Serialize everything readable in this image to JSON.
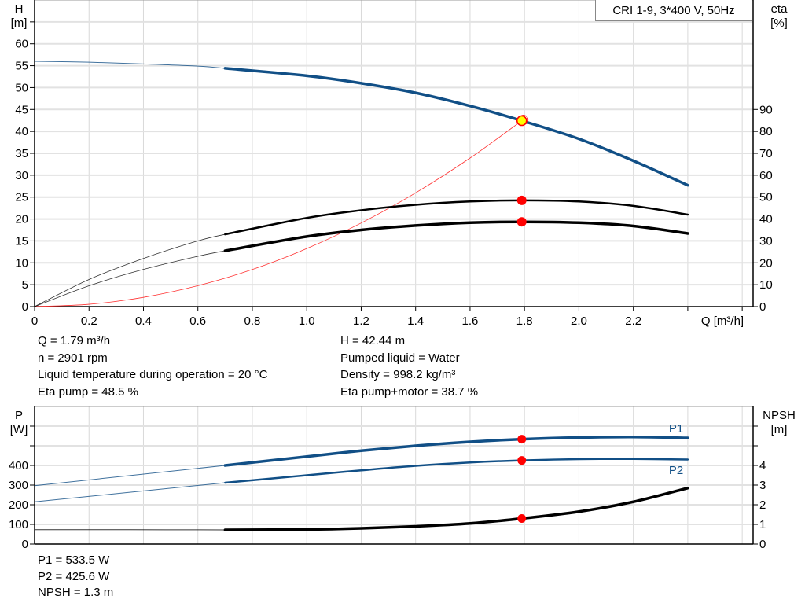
{
  "colors": {
    "head": "#114f86",
    "power": "#114f86",
    "eta": "#000000",
    "npsh": "#000000",
    "system_curve": "#ff3333",
    "operating_point": "#ff0000",
    "duty_marker": "#ffff00",
    "grid": "#d9d9d9"
  },
  "legend_text": "CRI 1-9, 3*400 V, 50Hz",
  "chart_data": [
    {
      "type": "line",
      "title": "",
      "xlabel": "Q [m³/h]",
      "ylabel_left": [
        "H",
        "[m]"
      ],
      "ylabel_right": [
        "eta",
        "[%]"
      ],
      "xlim": [
        0,
        2.64
      ],
      "ylim_left": [
        0,
        70
      ],
      "ylim_right": [
        0,
        140
      ],
      "x_ticks": [
        "0",
        "0.2",
        "0.4",
        "0.6",
        "0.8",
        "1.0",
        "1.2",
        "1.4",
        "1.6",
        "1.8",
        "2.0",
        "2.2"
      ],
      "y_ticks_left": [
        "0",
        "5",
        "10",
        "15",
        "20",
        "25",
        "30",
        "35",
        "40",
        "45",
        "50",
        "55",
        "60"
      ],
      "y_ticks_right": [
        "0",
        "10",
        "20",
        "30",
        "40",
        "50",
        "60",
        "70",
        "80",
        "90"
      ],
      "grid": true,
      "operating_range_start": 0.7,
      "series": [
        {
          "key": "head",
          "axis": "left",
          "x": [
            0,
            0.2,
            0.4,
            0.6,
            0.7,
            1.0,
            1.2,
            1.4,
            1.6,
            1.79,
            2.0,
            2.2,
            2.4
          ],
          "y": [
            56,
            55.8,
            55.4,
            54.9,
            54.4,
            52.7,
            51,
            48.8,
            45.8,
            42.44,
            38.3,
            33.3,
            27.7
          ]
        },
        {
          "key": "eta_pump",
          "axis": "right",
          "x": [
            0,
            0.2,
            0.4,
            0.6,
            0.7,
            1.0,
            1.2,
            1.4,
            1.6,
            1.79,
            2.0,
            2.2,
            2.4
          ],
          "y": [
            0,
            12.4,
            22,
            30,
            33,
            40.5,
            44,
            46.5,
            48,
            48.5,
            48,
            46,
            42
          ]
        },
        {
          "key": "eta_pump_motor",
          "axis": "right",
          "x": [
            0,
            0.2,
            0.4,
            0.6,
            0.7,
            1.0,
            1.2,
            1.4,
            1.6,
            1.79,
            2.0,
            2.2,
            2.4
          ],
          "y": [
            0,
            9.5,
            17,
            23,
            25.5,
            32,
            35,
            37,
            38.3,
            38.7,
            38.3,
            36.8,
            33.4
          ]
        },
        {
          "key": "system_curve",
          "axis": "left",
          "x": [
            0,
            0.2,
            0.4,
            0.6,
            0.8,
            1.0,
            1.2,
            1.4,
            1.6,
            1.79
          ],
          "y": [
            0,
            0.53,
            2.12,
            4.77,
            8.48,
            13.25,
            19.08,
            25.97,
            33.92,
            42.44
          ]
        }
      ],
      "operating_point": {
        "Q": 1.79,
        "H": 42.44,
        "eta_pump": 48.5,
        "eta_pump_motor": 38.7
      }
    },
    {
      "type": "line",
      "title": "",
      "xlim": [
        0,
        2.64
      ],
      "ylabel_left": [
        "P",
        "[W]"
      ],
      "ylabel_right": [
        "NPSH",
        "[m]"
      ],
      "ylim_left": [
        0,
        700
      ],
      "ylim_right": [
        0,
        7
      ],
      "y_ticks_left": [
        "0",
        "100",
        "200",
        "300",
        "400"
      ],
      "y_ticks_right": [
        "0",
        "1",
        "2",
        "3",
        "4"
      ],
      "grid": true,
      "series": [
        {
          "key": "P1",
          "name": "P1",
          "axis": "left",
          "x": [
            0,
            0.7,
            1.0,
            1.2,
            1.4,
            1.6,
            1.79,
            2.0,
            2.2,
            2.4
          ],
          "y": [
            297,
            400,
            445,
            475,
            500,
            520,
            533.5,
            542,
            545,
            540
          ]
        },
        {
          "key": "P2",
          "name": "P2",
          "axis": "left",
          "x": [
            0,
            0.7,
            1.0,
            1.2,
            1.4,
            1.6,
            1.79,
            2.0,
            2.2,
            2.4
          ],
          "y": [
            215,
            312,
            350,
            375,
            398,
            415,
            425.6,
            432,
            433,
            430
          ]
        },
        {
          "key": "NPSH",
          "axis": "right",
          "x": [
            0,
            0.35,
            0.7,
            1.0,
            1.2,
            1.4,
            1.6,
            1.79,
            2.0,
            2.2,
            2.4
          ],
          "y": [
            0.73,
            0.73,
            0.72,
            0.74,
            0.8,
            0.9,
            1.05,
            1.3,
            1.65,
            2.15,
            2.85
          ]
        }
      ],
      "operating_point": {
        "Q": 1.79,
        "P1": 533.5,
        "P2": 425.6,
        "NPSH": 1.3
      }
    }
  ],
  "info_top_left": [
    "Q = 1.79 m³/h",
    "n = 2901 rpm",
    "Liquid temperature during operation = 20 °C",
    "Eta pump = 48.5 %"
  ],
  "info_top_right": [
    "H = 42.44 m",
    "Pumped liquid = Water",
    "Density = 998.2 kg/m³",
    "Eta pump+motor = 38.7 %"
  ],
  "info_bottom": [
    "P1 = 533.5 W",
    "P2 = 425.6 W",
    "NPSH = 1.3 m"
  ]
}
